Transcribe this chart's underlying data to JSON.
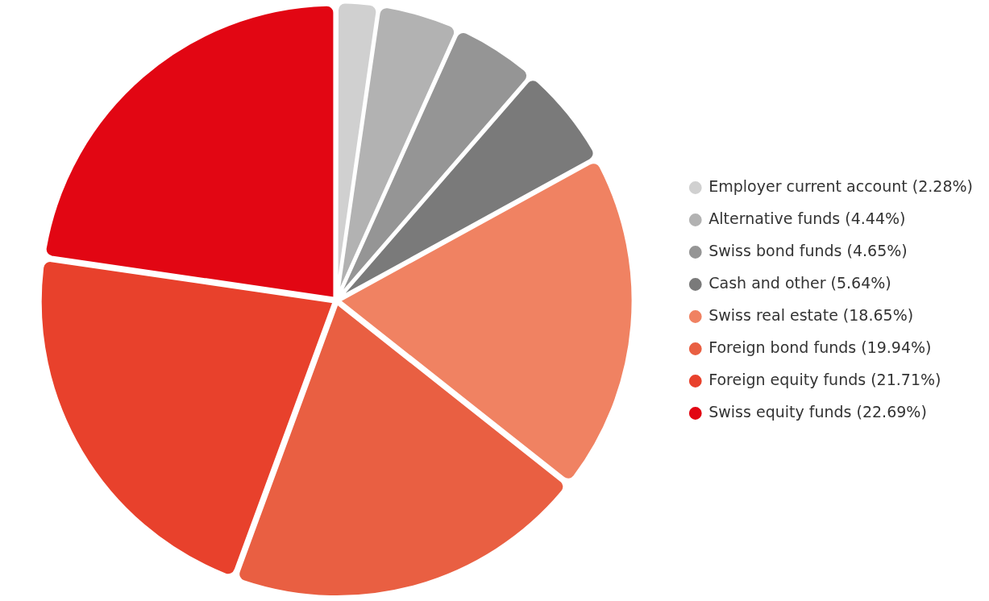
{
  "chart_data": {
    "type": "pie",
    "categories": [
      "Employer current account (2.28%)",
      "Alternative funds (4.44%)",
      "Swiss bond funds (4.65%)",
      "Cash and other (5.64%)",
      "Swiss real estate (18.65%)",
      "Foreign bond funds (19.94%)",
      "Foreign equity funds (21.71%)",
      "Swiss equity funds (22.69%)"
    ],
    "values": [
      2.28,
      4.44,
      4.65,
      5.64,
      18.65,
      19.94,
      21.71,
      22.69
    ],
    "colors": [
      "#d0d0d0",
      "#b2b2b2",
      "#959595",
      "#7a7a7a",
      "#f08262",
      "#e95f42",
      "#e8412c",
      "#e20613"
    ],
    "legend": "right"
  }
}
